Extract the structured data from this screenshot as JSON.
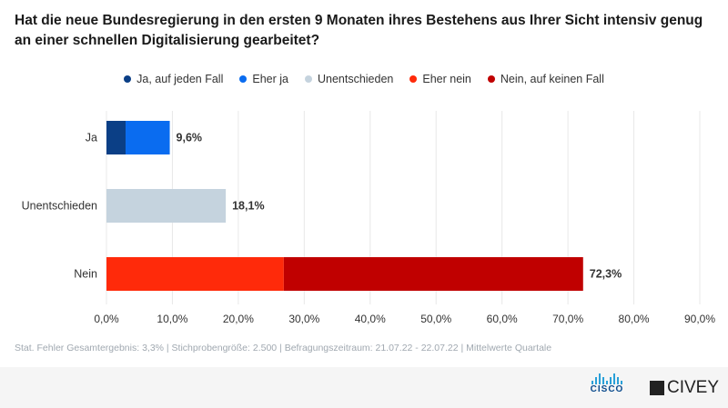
{
  "title": "Hat die neue Bundesregierung in den ersten 9 Monaten ihres Bestehens aus Ihrer Sicht intensiv genug an einer schnellen Digitalisierung gearbeitet?",
  "footer_note": "Stat. Fehler Gesamtergebnis: 3,3% | Stichprobengröße: 2.500 | Befragungszeitraum: 21.07.22 - 22.07.22 | Mittelwerte Quartale",
  "logos": {
    "cisco": "CISCO",
    "civey": "CIVEY"
  },
  "chart_data": {
    "type": "bar",
    "orientation": "horizontal",
    "stacked": true,
    "categories": [
      "Ja",
      "Unentschieden",
      "Nein"
    ],
    "totals": [
      9.6,
      18.1,
      72.3
    ],
    "total_labels": [
      "9,6%",
      "18,1%",
      "72,3%"
    ],
    "series": [
      {
        "name": "Ja, auf jeden Fall",
        "color": "#0b3f86",
        "values": [
          2.9,
          0,
          0
        ]
      },
      {
        "name": "Eher ja",
        "color": "#0a6cf0",
        "values": [
          6.7,
          0,
          0
        ]
      },
      {
        "name": "Unentschieden",
        "color": "#c5d3de",
        "values": [
          0,
          18.1,
          0
        ]
      },
      {
        "name": "Eher nein",
        "color": "#ff2a0a",
        "values": [
          0,
          0,
          26.9
        ]
      },
      {
        "name": "Nein, auf keinen Fall",
        "color": "#c00000",
        "values": [
          0,
          0,
          45.4
        ]
      }
    ],
    "xlim": [
      0,
      90
    ],
    "xticks": [
      "0,0%",
      "10,0%",
      "20,0%",
      "30,0%",
      "40,0%",
      "50,0%",
      "60,0%",
      "70,0%",
      "80,0%",
      "90,0%"
    ],
    "grid": true,
    "legend_position": "top"
  }
}
